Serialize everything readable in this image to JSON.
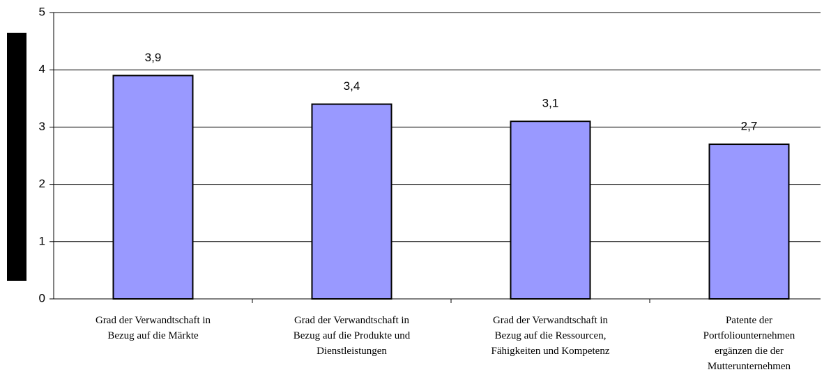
{
  "chart_data": {
    "type": "bar",
    "categories": [
      "Grad der Verwandtschaft in\nBezug auf die Märkte",
      "Grad der Verwandtschaft in\nBezug auf die Produkte und\nDienstleistungen",
      "Grad der Verwandtschaft in\nBezug auf die Ressourcen,\nFähigkeiten und Kompetenz",
      "Patente der\nPortfoliounternehmen\nergänzen die der\nMutterunternehmen"
    ],
    "values": [
      3.9,
      3.4,
      3.1,
      2.7
    ],
    "value_labels": [
      "3,9",
      "3,4",
      "3,1",
      "2,7"
    ],
    "color": "#9999ff",
    "ylim": [
      0,
      5
    ],
    "yticks": [
      0,
      1,
      2,
      3,
      4,
      5
    ],
    "grid": true
  }
}
